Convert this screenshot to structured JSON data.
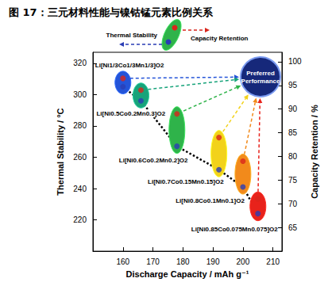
{
  "chart_data": {
    "type": "scatter",
    "title": "图 17：三元材料性能与镍钴锰元素比例关系",
    "x_label": "Discharge Capacity / mAh g⁻¹",
    "y_label": "Thermal Stability / °C",
    "y2_label": "Capacity Retention / %",
    "xlim": [
      150,
      213
    ],
    "xticks": [
      160,
      170,
      180,
      190,
      200,
      210
    ],
    "ylim": [
      200,
      327
    ],
    "yticks": [
      220,
      240,
      260,
      280,
      300,
      320
    ],
    "y2lim": [
      60,
      102
    ],
    "y2ticks": [
      65,
      70,
      75,
      80,
      85,
      90,
      95,
      100
    ],
    "x": [
      160,
      166,
      178,
      192,
      200,
      205
    ],
    "labels": [
      "Li[Ni1/3Co1/3Mn1/3]O2",
      "Li[Ni0.5Co0.2Mn0.3]O2",
      "Li[Ni0.6Co0.2Mn0.2]O2",
      "Li[Ni0.7Co0.15Mn0.15]O2",
      "Li[Ni0.8Co0.1Mn0.1]O2",
      "Li[Ni0.85Co0.075Mn0.075]O2"
    ],
    "colors": [
      "#2454d8",
      "#17a37a",
      "#2fb34a",
      "#f2d21b",
      "#f28a1b",
      "#e8221b"
    ],
    "series": [
      {
        "name": "Thermal Stability",
        "color": "#2a3db5",
        "values": [
          305,
          296,
          267,
          252,
          241,
          224
        ],
        "line_style": "dotted"
      },
      {
        "name": "Capacity Retention",
        "color": "#d9261c",
        "values": [
          96.5,
          94,
          89,
          84,
          79,
          71
        ],
        "axis": "y2"
      }
    ],
    "annotation": "Preferred Performance",
    "legend": "top",
    "grid": false
  }
}
